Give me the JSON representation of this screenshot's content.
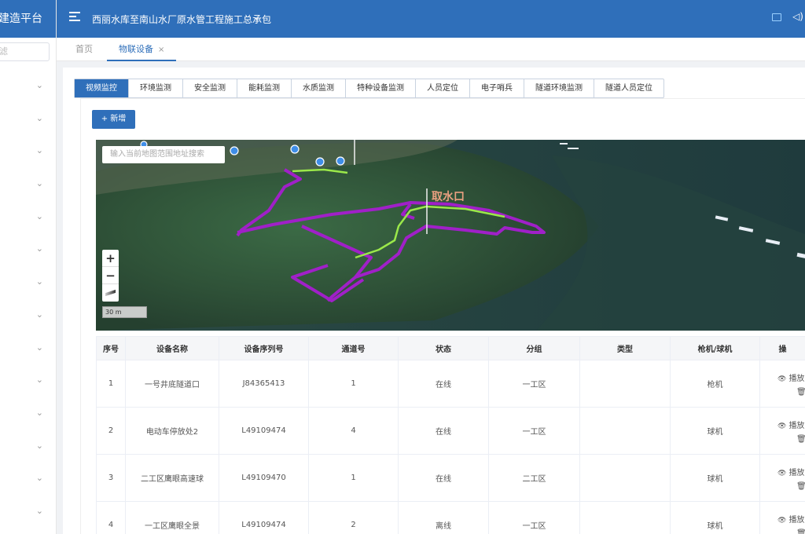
{
  "sidebar": {
    "brand": "建造平台",
    "filter_placeholder": "滤",
    "item_count": 14
  },
  "header": {
    "project_title": "西丽水库至南山水厂原水管工程施工总承包",
    "chevron": "⌄"
  },
  "page_tabs": {
    "home": "首页",
    "active": "物联设备",
    "close": "×"
  },
  "category_tabs": [
    "视频监控",
    "环境监测",
    "安全监测",
    "能耗监测",
    "水质监测",
    "特种设备监测",
    "人员定位",
    "电子哨兵",
    "隧道环境监测",
    "隧道人员定位"
  ],
  "toolbar": {
    "add_label": "+ 新增"
  },
  "map": {
    "search_placeholder": "输入当前地图范围地址搜索",
    "label": "取水口",
    "zoom_in": "+",
    "zoom_out": "−",
    "scale": "30 m"
  },
  "table": {
    "headers": [
      "序号",
      "设备名称",
      "设备序列号",
      "通道号",
      "状态",
      "分组",
      "类型",
      "枪机/球机",
      "操"
    ],
    "rows": [
      {
        "no": "1",
        "name": "一号井底隧道口",
        "serial": "J84365413",
        "channel": "1",
        "status": "在线",
        "group": "一工区",
        "type": "",
        "camera": "枪机"
      },
      {
        "no": "2",
        "name": "电动车停放处2",
        "serial": "L49109474",
        "channel": "4",
        "status": "在线",
        "group": "一工区",
        "type": "",
        "camera": "球机"
      },
      {
        "no": "3",
        "name": "二工区鹰眼高速球",
        "serial": "L49109470",
        "channel": "1",
        "status": "在线",
        "group": "二工区",
        "type": "",
        "camera": "球机"
      },
      {
        "no": "4",
        "name": "一工区鹰眼全景",
        "serial": "L49109474",
        "channel": "2",
        "status": "离线",
        "group": "一工区",
        "type": "",
        "camera": "球机"
      }
    ],
    "play_label": "播放",
    "delete_icon": "🗑"
  },
  "colors": {
    "primary": "#2f6fba",
    "online": "#52c41a",
    "offline": "#f5222d",
    "route_purple": "#a020c8",
    "route_green": "#9be84a"
  }
}
